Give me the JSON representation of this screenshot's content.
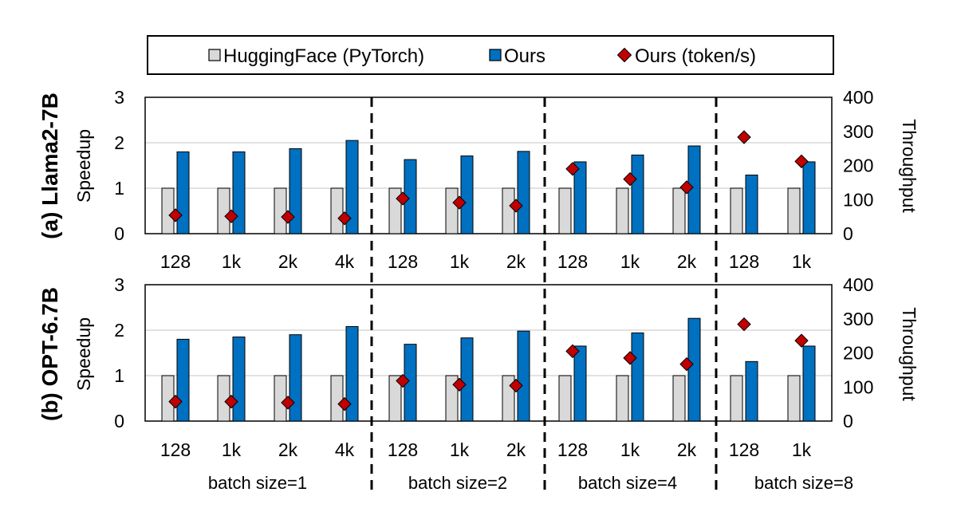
{
  "legend": {
    "hf_label": "HuggingFace (PyTorch)",
    "ours_label": "Ours",
    "tps_label": "Ours (token/s)"
  },
  "colors": {
    "hf_fill": "#d9d9d9",
    "ours_fill": "#0070c0",
    "tps_fill": "#c00000",
    "grid": "#d9d9d9"
  },
  "batch_labels": [
    "batch size=1",
    "batch size=2",
    "batch size=4",
    "batch size=8"
  ],
  "chart_data": [
    {
      "type": "bar",
      "title": "(a) Llama2-7B",
      "ylabel": "Speedup",
      "y2label": "Throughput",
      "ylim": [
        0,
        3
      ],
      "y2lim": [
        0,
        400
      ],
      "yticks": [
        "0",
        "1",
        "2",
        "3"
      ],
      "y2ticks": [
        "0",
        "100",
        "200",
        "300",
        "400"
      ],
      "grid": true,
      "categories": [
        "128",
        "1k",
        "2k",
        "4k",
        "128",
        "1k",
        "2k",
        "128",
        "1k",
        "2k",
        "128",
        "1k"
      ],
      "series": [
        {
          "name": "HuggingFace (PyTorch)",
          "axis": "left",
          "values": [
            1,
            1,
            1,
            1,
            1,
            1,
            1,
            1,
            1,
            1,
            1,
            1
          ]
        },
        {
          "name": "Ours",
          "axis": "left",
          "values": [
            1.8,
            1.8,
            1.87,
            2.05,
            1.63,
            1.71,
            1.81,
            1.58,
            1.73,
            1.93,
            1.29,
            1.58
          ]
        },
        {
          "name": "Ours (token/s)",
          "axis": "right",
          "values": [
            54,
            51,
            49,
            45,
            103,
            91,
            82,
            190,
            160,
            136,
            283,
            212
          ]
        }
      ]
    },
    {
      "type": "bar",
      "title": "(b) OPT-6.7B",
      "ylabel": "Speedup",
      "y2label": "Throughput",
      "ylim": [
        0,
        3
      ],
      "y2lim": [
        0,
        400
      ],
      "yticks": [
        "0",
        "1",
        "2",
        "3"
      ],
      "y2ticks": [
        "0",
        "100",
        "200",
        "300",
        "400"
      ],
      "grid": true,
      "categories": [
        "128",
        "1k",
        "2k",
        "4k",
        "128",
        "1k",
        "2k",
        "128",
        "1k",
        "2k",
        "128",
        "1k"
      ],
      "series": [
        {
          "name": "HuggingFace (PyTorch)",
          "axis": "left",
          "values": [
            1,
            1,
            1,
            1,
            1,
            1,
            1,
            1,
            1,
            1,
            1,
            1
          ]
        },
        {
          "name": "Ours",
          "axis": "left",
          "values": [
            1.8,
            1.85,
            1.9,
            2.08,
            1.69,
            1.83,
            1.98,
            1.65,
            1.94,
            2.26,
            1.31,
            1.65
          ]
        },
        {
          "name": "Ours (token/s)",
          "axis": "right",
          "values": [
            57,
            57,
            54,
            50,
            118,
            107,
            104,
            205,
            185,
            167,
            284,
            236
          ]
        }
      ]
    }
  ]
}
